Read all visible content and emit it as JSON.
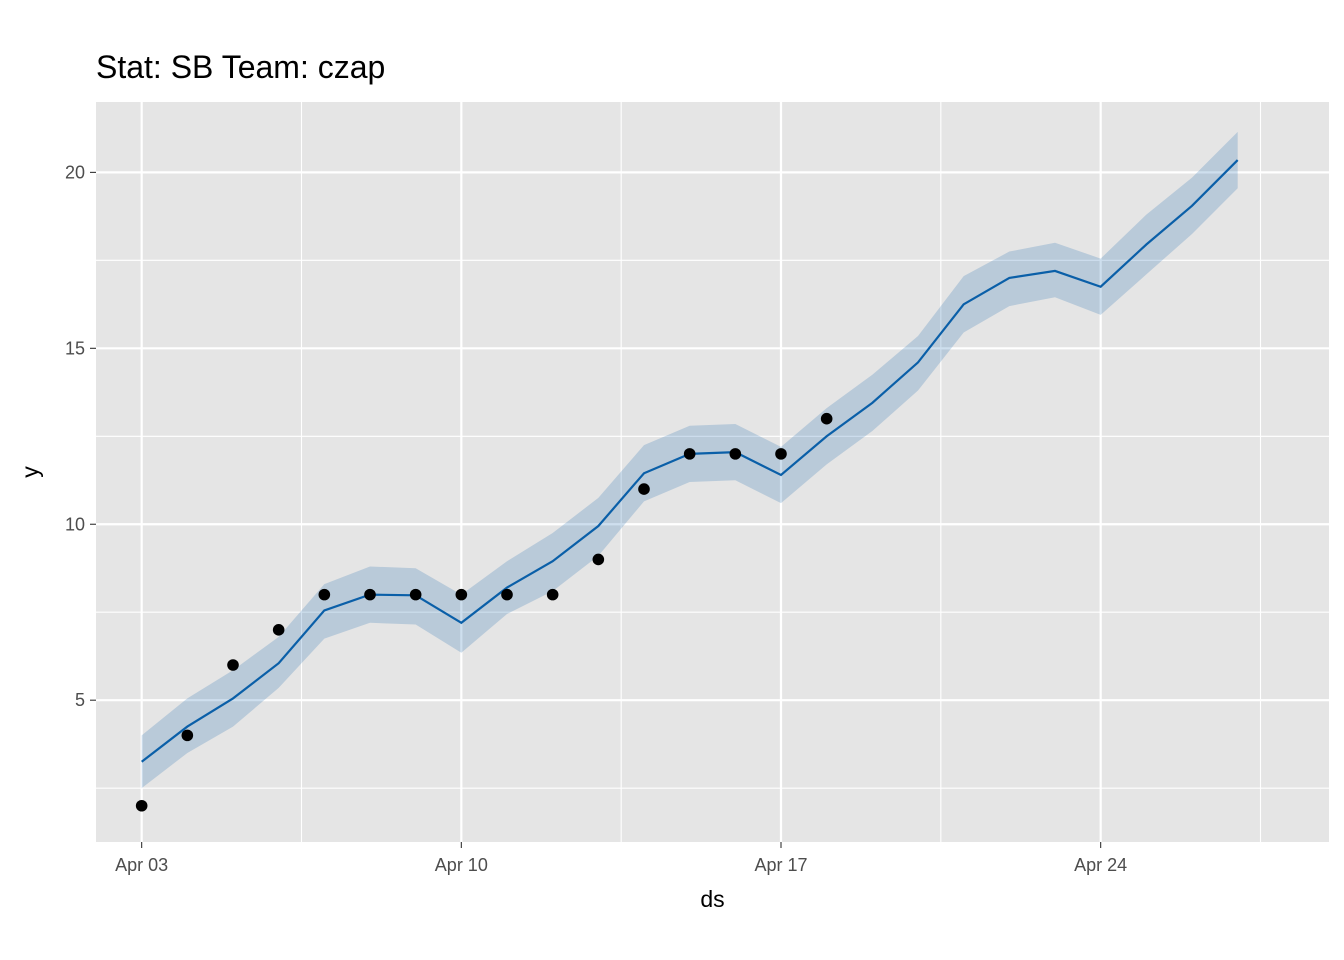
{
  "chart_data": {
    "type": "line",
    "title": "Stat: SB Team: czap",
    "xlabel": "ds",
    "ylabel": "y",
    "x_ticks": [
      {
        "date": "2021-04-03",
        "label": "Apr 03"
      },
      {
        "date": "2021-04-10",
        "label": "Apr 10"
      },
      {
        "date": "2021-04-17",
        "label": "Apr 17"
      },
      {
        "date": "2021-04-24",
        "label": "Apr 24"
      }
    ],
    "y_ticks": [
      5,
      10,
      15,
      20
    ],
    "xlim": [
      "2021-04-02",
      "2021-04-29"
    ],
    "ylim": [
      0.97,
      22.0
    ],
    "grid": true,
    "colors": {
      "panel": "#e5e5e5",
      "grid": "#ffffff",
      "line": "#0a5fa8",
      "band": "#0a5fa8",
      "points": "#000000"
    },
    "series": [
      {
        "name": "",
        "kind": "forecast",
        "x": [
          "2021-04-03",
          "2021-04-04",
          "2021-04-05",
          "2021-04-06",
          "2021-04-07",
          "2021-04-08",
          "2021-04-09",
          "2021-04-10",
          "2021-04-11",
          "2021-04-12",
          "2021-04-13",
          "2021-04-14",
          "2021-04-15",
          "2021-04-16",
          "2021-04-17",
          "2021-04-18",
          "2021-04-19",
          "2021-04-20",
          "2021-04-21",
          "2021-04-22",
          "2021-04-23",
          "2021-04-24",
          "2021-04-25",
          "2021-04-26",
          "2021-04-27"
        ],
        "yhat": [
          3.25,
          4.25,
          5.05,
          6.05,
          7.55,
          8.0,
          7.98,
          7.2,
          8.2,
          8.95,
          9.95,
          11.45,
          12.0,
          12.05,
          11.4,
          12.5,
          13.45,
          14.6,
          16.25,
          17.0,
          17.2,
          16.75,
          17.95,
          19.05,
          20.35
        ],
        "lower": [
          2.5,
          3.5,
          4.25,
          5.35,
          6.75,
          7.2,
          7.15,
          6.35,
          7.45,
          8.1,
          9.1,
          10.65,
          11.2,
          11.25,
          10.6,
          11.7,
          12.65,
          13.8,
          15.45,
          16.2,
          16.45,
          15.95,
          17.1,
          18.25,
          19.55
        ],
        "upper": [
          4.0,
          5.05,
          5.85,
          6.8,
          8.3,
          8.8,
          8.75,
          8.0,
          8.95,
          9.75,
          10.75,
          12.25,
          12.8,
          12.85,
          12.2,
          13.3,
          14.25,
          15.35,
          17.05,
          17.75,
          18.0,
          17.55,
          18.8,
          19.85,
          21.15
        ]
      },
      {
        "name": "",
        "kind": "observed",
        "x": [
          "2021-04-03",
          "2021-04-04",
          "2021-04-05",
          "2021-04-06",
          "2021-04-07",
          "2021-04-08",
          "2021-04-09",
          "2021-04-10",
          "2021-04-11",
          "2021-04-12",
          "2021-04-13",
          "2021-04-14",
          "2021-04-15",
          "2021-04-16",
          "2021-04-17",
          "2021-04-18"
        ],
        "y": [
          2,
          4,
          6,
          7,
          8,
          8,
          8,
          8,
          8,
          8,
          9,
          11,
          12,
          12,
          12,
          13
        ]
      }
    ]
  }
}
